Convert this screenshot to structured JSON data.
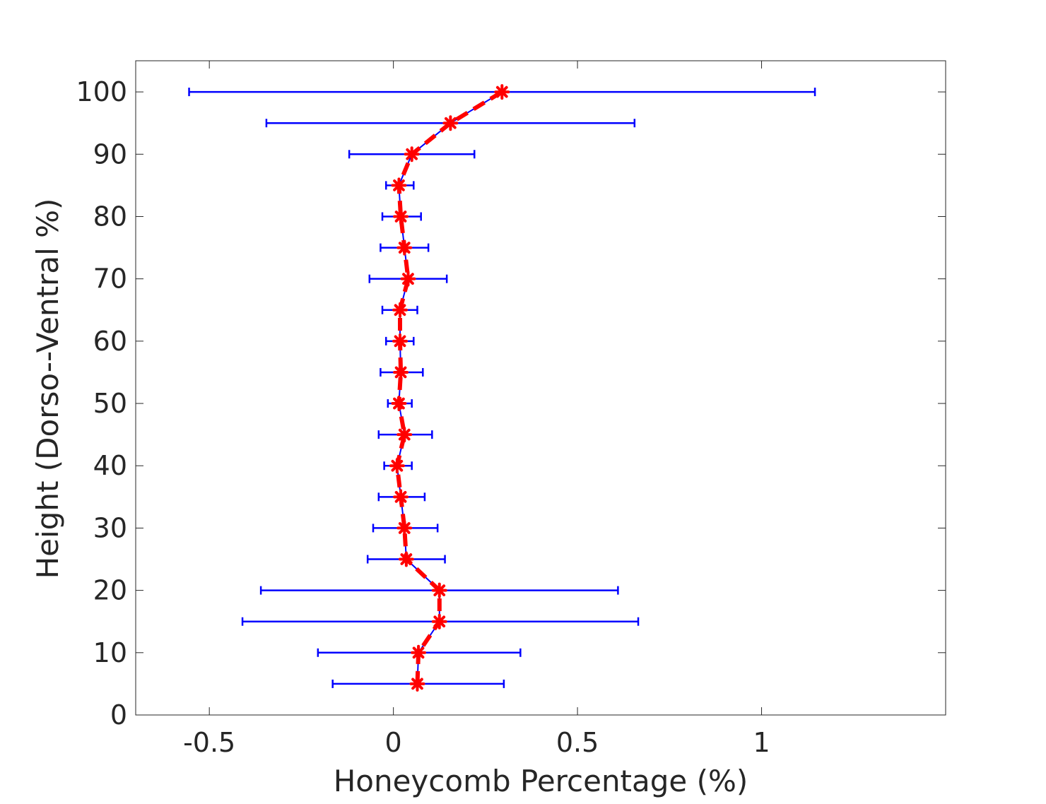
{
  "chart_data": {
    "type": "scatter",
    "orientation": "horizontal-errorbar",
    "title": "",
    "xlabel": "Honeycomb Percentage (%)",
    "ylabel": "Height (Dorso--Ventral %)",
    "xlim": [
      -0.7,
      1.5
    ],
    "ylim": [
      0,
      105
    ],
    "xticks": [
      -0.5,
      0,
      0.5,
      1
    ],
    "xtick_labels": [
      "-0.5",
      "0",
      "0.5",
      "1"
    ],
    "yticks": [
      0,
      10,
      20,
      30,
      40,
      50,
      60,
      70,
      80,
      90,
      100
    ],
    "ytick_labels": [
      "0",
      "10",
      "20",
      "30",
      "40",
      "50",
      "60",
      "70",
      "80",
      "90",
      "100"
    ],
    "grid": false,
    "legend": "none",
    "colors": {
      "errorbar": "#0000ff",
      "marker_line": "#ff0000",
      "axis": "#262626"
    },
    "series": [
      {
        "points": [
          {
            "y": 5,
            "x": 0.065,
            "xlo": -0.165,
            "xhi": 0.3
          },
          {
            "y": 10,
            "x": 0.068,
            "xlo": -0.205,
            "xhi": 0.345
          },
          {
            "y": 15,
            "x": 0.125,
            "xlo": -0.41,
            "xhi": 0.665
          },
          {
            "y": 20,
            "x": 0.125,
            "xlo": -0.36,
            "xhi": 0.61
          },
          {
            "y": 25,
            "x": 0.035,
            "xlo": -0.07,
            "xhi": 0.14
          },
          {
            "y": 30,
            "x": 0.03,
            "xlo": -0.055,
            "xhi": 0.12
          },
          {
            "y": 35,
            "x": 0.02,
            "xlo": -0.04,
            "xhi": 0.085
          },
          {
            "y": 40,
            "x": 0.01,
            "xlo": -0.025,
            "xhi": 0.05
          },
          {
            "y": 45,
            "x": 0.03,
            "xlo": -0.04,
            "xhi": 0.105
          },
          {
            "y": 50,
            "x": 0.015,
            "xlo": -0.015,
            "xhi": 0.05
          },
          {
            "y": 55,
            "x": 0.02,
            "xlo": -0.035,
            "xhi": 0.08
          },
          {
            "y": 60,
            "x": 0.018,
            "xlo": -0.02,
            "xhi": 0.055
          },
          {
            "y": 65,
            "x": 0.018,
            "xlo": -0.03,
            "xhi": 0.065
          },
          {
            "y": 70,
            "x": 0.04,
            "xlo": -0.065,
            "xhi": 0.145
          },
          {
            "y": 75,
            "x": 0.03,
            "xlo": -0.035,
            "xhi": 0.095
          },
          {
            "y": 80,
            "x": 0.02,
            "xlo": -0.03,
            "xhi": 0.075
          },
          {
            "y": 85,
            "x": 0.015,
            "xlo": -0.02,
            "xhi": 0.055
          },
          {
            "y": 90,
            "x": 0.05,
            "xlo": -0.12,
            "xhi": 0.22
          },
          {
            "y": 95,
            "x": 0.155,
            "xlo": -0.345,
            "xhi": 0.655
          },
          {
            "y": 100,
            "x": 0.295,
            "xlo": -0.555,
            "xhi": 1.145
          }
        ]
      }
    ]
  }
}
